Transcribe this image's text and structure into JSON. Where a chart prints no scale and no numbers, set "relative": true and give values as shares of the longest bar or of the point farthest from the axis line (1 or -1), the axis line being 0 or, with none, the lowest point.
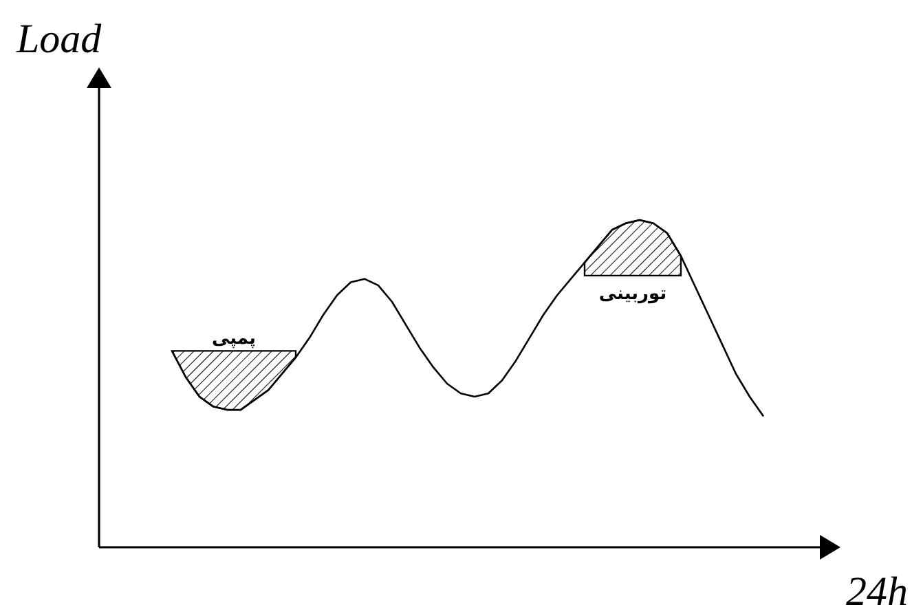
{
  "chart_data": {
    "type": "line",
    "relative": true,
    "xlabel": "24h",
    "ylabel": "Load",
    "marker": "none",
    "line_style": "solid",
    "categories": [
      null,
      null,
      null,
      null,
      null,
      null,
      null,
      null,
      null,
      null,
      null,
      null,
      null,
      null,
      null,
      null,
      null,
      null,
      null,
      null,
      null,
      null,
      null,
      null,
      null,
      null,
      null,
      null,
      null,
      null,
      null,
      null,
      null,
      null,
      null,
      null,
      null,
      null,
      null,
      null,
      null,
      null,
      null,
      null
    ],
    "series": [
      {
        "color": "#000000",
        "values": [
          0.6,
          0.52,
          0.46,
          0.43,
          0.42,
          0.42,
          0.45,
          0.48,
          0.53,
          0.58,
          0.64,
          0.71,
          0.77,
          0.81,
          0.82,
          0.8,
          0.75,
          0.68,
          0.61,
          0.55,
          0.5,
          0.47,
          0.46,
          0.47,
          0.51,
          0.57,
          0.64,
          0.71,
          0.77,
          0.82,
          0.87,
          0.92,
          0.97,
          0.99,
          1,
          0.99,
          0.96,
          0.89,
          0.8,
          0.71,
          0.62,
          0.53,
          0.46,
          0.4
        ],
        "lower": [
          0.6,
          0.52,
          0.46,
          0.43,
          0.42,
          0.42,
          0.45,
          0.48,
          0.53,
          0.58,
          null,
          null,
          null,
          null,
          null,
          null,
          null,
          null,
          null,
          null,
          null,
          null,
          null,
          null,
          null,
          null,
          null,
          null,
          null,
          null,
          0.83,
          0.83,
          0.83,
          0.83,
          0.83,
          0.83,
          0.83,
          0.83,
          null,
          null,
          null,
          null,
          null,
          null
        ],
        "upper": [
          0.6,
          0.6,
          0.6,
          0.6,
          0.6,
          0.6,
          0.6,
          0.6,
          0.6,
          0.6,
          null,
          null,
          null,
          null,
          null,
          null,
          null,
          null,
          null,
          null,
          null,
          null,
          null,
          null,
          null,
          null,
          null,
          null,
          null,
          null,
          0.87,
          0.92,
          0.97,
          0.99,
          1,
          0.99,
          0.96,
          0.89,
          null,
          null,
          null,
          null,
          null,
          null
        ]
      }
    ],
    "annotations": [
      "پمپی",
      "توربینی"
    ]
  }
}
